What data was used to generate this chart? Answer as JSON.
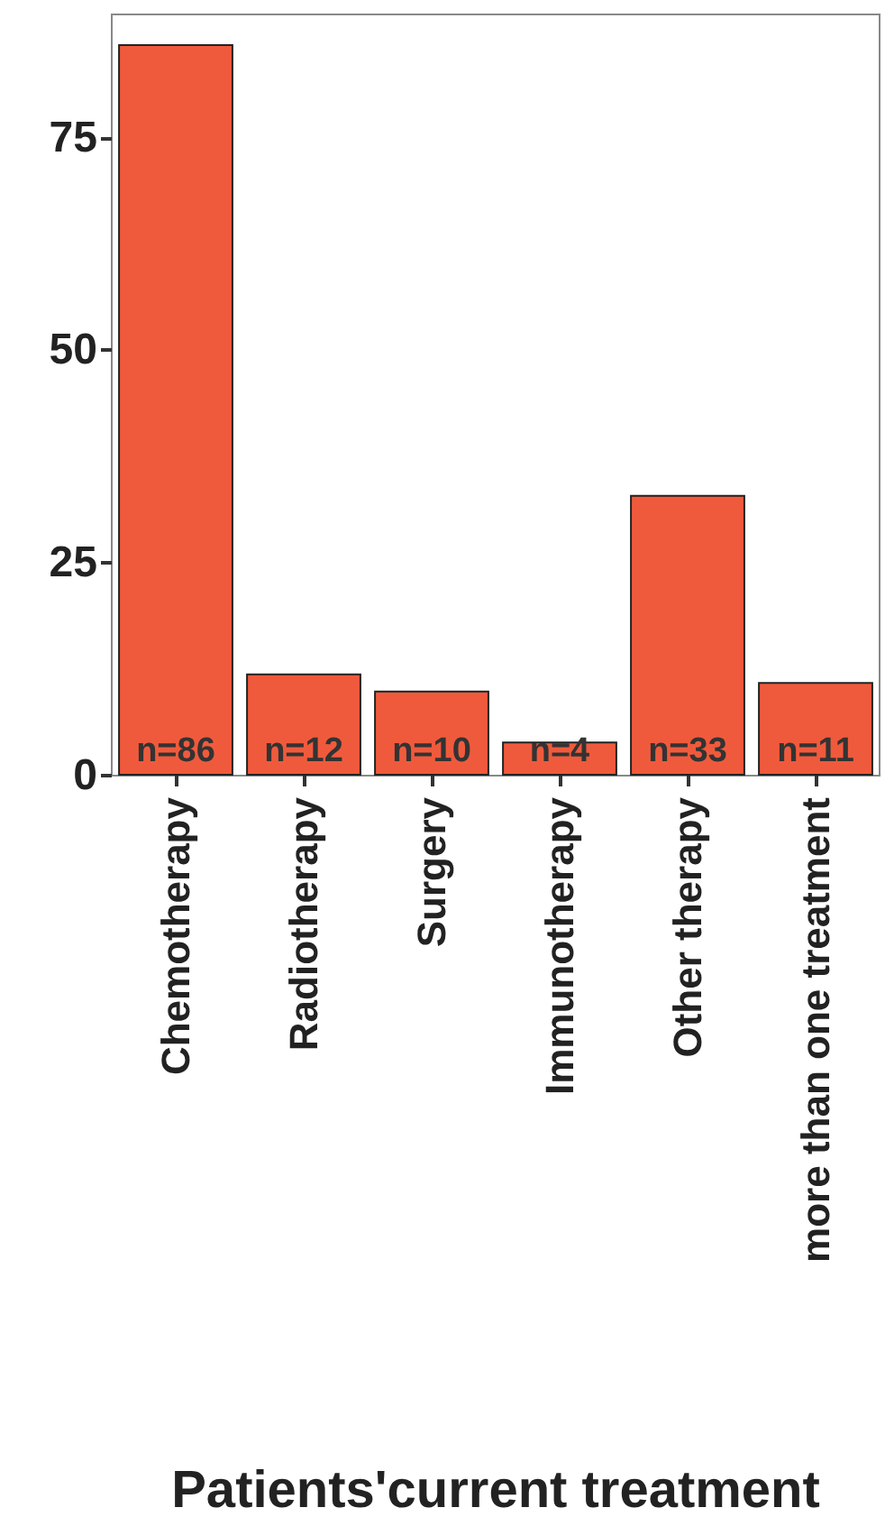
{
  "chart_data": {
    "type": "bar",
    "xlabel": "Patients'current treatment",
    "categories": [
      "Chemotherapy",
      "Radiotherapy",
      "Surgery",
      "Immunotherapy",
      "Other therapy",
      "more than one treatment"
    ],
    "values": [
      86,
      12,
      10,
      4,
      33,
      11
    ],
    "value_labels": [
      "n=86",
      "n=12",
      "n=10",
      "n=4",
      "n=33",
      "n=11"
    ],
    "color": "#f05a3c",
    "ylim": [
      0,
      89.5
    ],
    "yticks": [
      0,
      25,
      50,
      75
    ],
    "grid": false
  }
}
